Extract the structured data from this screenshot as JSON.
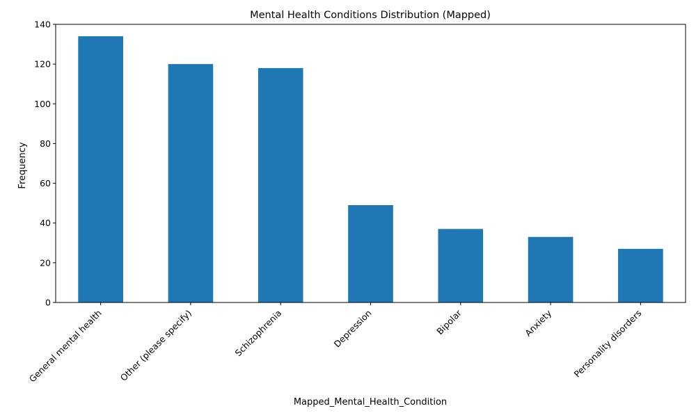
{
  "chart_data": {
    "type": "bar",
    "title": "Mental Health Conditions Distribution (Mapped)",
    "xlabel": "Mapped_Mental_Health_Condition",
    "ylabel": "Frequency",
    "categories": [
      "General mental health",
      "Other (please specify)",
      "Schizophrenia",
      "Depression",
      "Bipolar",
      "Anxiety",
      "Personality disorders"
    ],
    "values": [
      134,
      120,
      118,
      49,
      37,
      33,
      27
    ],
    "ylim": [
      0,
      140
    ],
    "yticks": [
      0,
      20,
      40,
      60,
      80,
      100,
      120,
      140
    ],
    "grid": false,
    "legend": "none",
    "colors": {
      "bar": "#1f77b4",
      "axis": "#000000",
      "background": "#ffffff"
    }
  }
}
